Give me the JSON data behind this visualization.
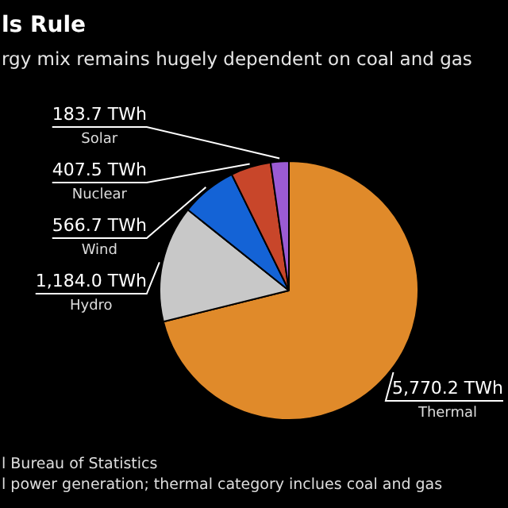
{
  "chart_data": {
    "type": "pie",
    "title": "ls Rule",
    "subtitle": "rgy mix remains hugely dependent on coal and gas",
    "categories": [
      "Thermal",
      "Hydro",
      "Wind",
      "Nuclear",
      "Solar"
    ],
    "values": [
      5770.2,
      1184.0,
      566.7,
      407.5,
      183.7
    ],
    "value_labels": [
      "5,770.2 TWh",
      "1,184.0 TWh",
      "566.7 TWh",
      "407.5 TWh",
      "183.7 TWh"
    ],
    "colors": [
      "#e08a2a",
      "#c8c8c8",
      "#1463d6",
      "#c8462a",
      "#9b5bd4"
    ],
    "annotations": [
      "l Bureau of Statistics",
      "l power generation; thermal category inclues coal and gas"
    ],
    "legend": false
  }
}
